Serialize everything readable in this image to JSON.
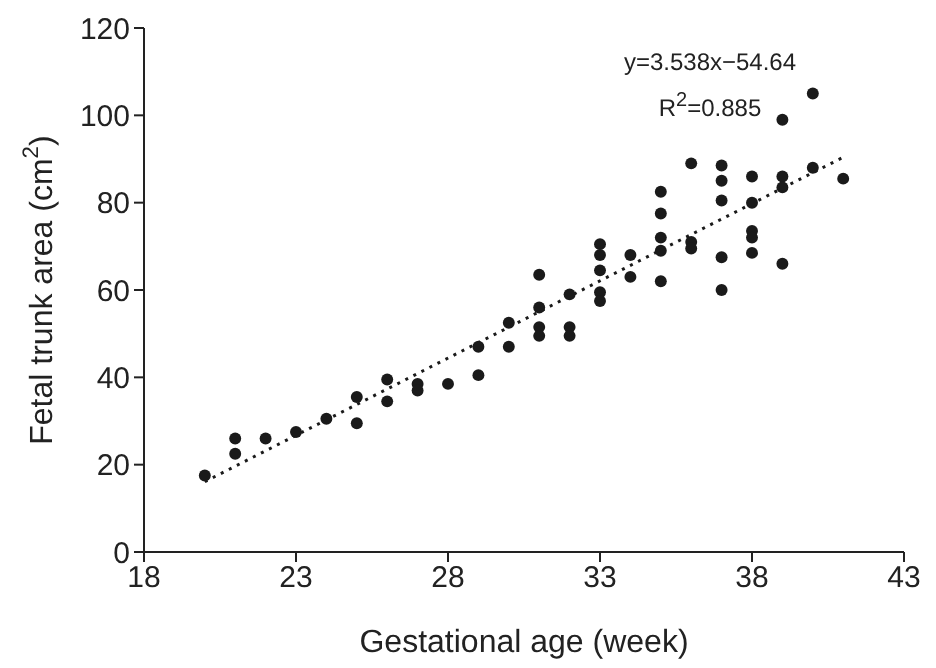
{
  "chart_data": {
    "type": "scatter",
    "xlabel": "Gestational age (week)",
    "ylabel": "Fetal trunk area (cm$^{2}$)",
    "annotations": [
      "y=3.538x−54.64",
      "R$^{2}$=0.885"
    ],
    "xlim": [
      18,
      43
    ],
    "xticks": [
      18,
      23,
      28,
      33,
      38,
      43
    ],
    "ylim": [
      0,
      120
    ],
    "yticks": [
      0,
      20,
      40,
      60,
      80,
      100,
      120
    ],
    "series": [
      {
        "marker": "circle",
        "color": "#1a1a1a",
        "x": [
          20,
          21,
          21,
          22,
          23,
          24,
          25,
          25,
          26,
          26,
          27,
          27,
          28,
          29,
          29,
          30,
          30,
          31,
          31,
          31,
          31,
          32,
          32,
          32,
          33,
          33,
          33,
          33,
          33,
          34,
          34,
          35,
          35,
          35,
          35,
          35,
          36,
          36,
          36,
          37,
          37,
          37,
          37,
          37,
          38,
          38,
          38,
          38,
          38,
          39,
          39,
          39,
          39,
          40,
          40,
          41
        ],
        "values": [
          17.5,
          26,
          22.5,
          26,
          27.5,
          30.5,
          35.5,
          29.5,
          39.5,
          34.5,
          38.5,
          37,
          38.5,
          47,
          40.5,
          52.5,
          47,
          63.5,
          56,
          51.5,
          49.5,
          59,
          51.5,
          49.5,
          70.5,
          68,
          64.5,
          59.5,
          57.5,
          68,
          63,
          82.5,
          77.5,
          72,
          69,
          62,
          89,
          71,
          69.5,
          88.5,
          85,
          80.5,
          67.5,
          60,
          86,
          80,
          73.5,
          72,
          68.5,
          99,
          86,
          83.5,
          66,
          105,
          88,
          85.5
        ]
      },
      {
        "type": "line",
        "marker": "none",
        "line_style": "dotted",
        "color": "#1a1a1a",
        "x": [
          20,
          41
        ],
        "values": [
          16.1,
          90.4
        ]
      }
    ]
  }
}
